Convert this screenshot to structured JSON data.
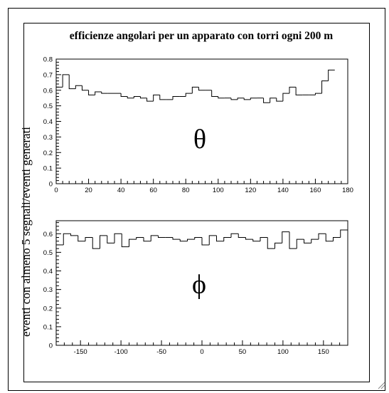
{
  "title": "efficienze angolari per un apparato con torri ogni 200 m",
  "ylabel": "eventi con almeno 5 segnali/eventi generati",
  "chart_data": [
    {
      "type": "histogram",
      "symbol": "θ",
      "xlim": [
        0,
        180
      ],
      "ylim": [
        0,
        0.8
      ],
      "xticks": [
        "0",
        "20",
        "40",
        "60",
        "80",
        "100",
        "120",
        "140",
        "160",
        "180"
      ],
      "yticks": [
        "0",
        "0.1",
        "0.2",
        "0.3",
        "0.4",
        "0.5",
        "0.6",
        "0.7",
        "0.8"
      ],
      "bin_width": 4,
      "values": [
        0.62,
        0.7,
        0.61,
        0.63,
        0.6,
        0.57,
        0.59,
        0.58,
        0.58,
        0.58,
        0.56,
        0.55,
        0.56,
        0.55,
        0.53,
        0.57,
        0.54,
        0.54,
        0.56,
        0.56,
        0.58,
        0.62,
        0.6,
        0.6,
        0.56,
        0.55,
        0.55,
        0.54,
        0.55,
        0.54,
        0.55,
        0.55,
        0.52,
        0.55,
        0.53,
        0.58,
        0.62,
        0.57,
        0.57,
        0.57,
        0.58,
        0.66,
        0.73
      ]
    },
    {
      "type": "histogram",
      "symbol": "ϕ",
      "xlim": [
        -180,
        180
      ],
      "ylim": [
        0,
        0.67
      ],
      "xticks": [
        "-150",
        "-100",
        "-50",
        "0",
        "50",
        "100",
        "150"
      ],
      "yticks": [
        "0",
        "0.1",
        "0.2",
        "0.3",
        "0.4",
        "0.5",
        "0.6"
      ],
      "bin_width": 9,
      "values": [
        0.54,
        0.6,
        0.59,
        0.56,
        0.58,
        0.52,
        0.59,
        0.55,
        0.6,
        0.53,
        0.57,
        0.58,
        0.56,
        0.59,
        0.58,
        0.58,
        0.57,
        0.56,
        0.57,
        0.58,
        0.54,
        0.59,
        0.56,
        0.58,
        0.6,
        0.58,
        0.57,
        0.56,
        0.58,
        0.52,
        0.55,
        0.61,
        0.52,
        0.57,
        0.55,
        0.57,
        0.6,
        0.56,
        0.58,
        0.62
      ]
    }
  ]
}
